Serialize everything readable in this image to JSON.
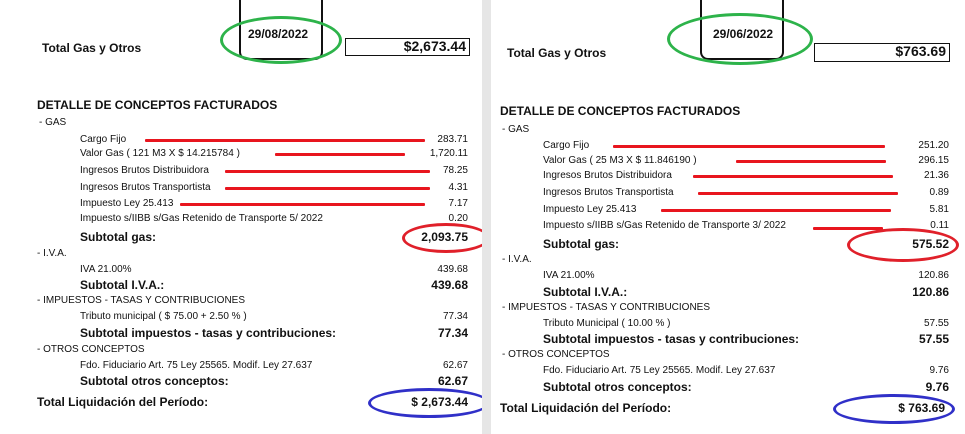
{
  "colors": {
    "green": "#2db34a",
    "red": "#e0202a",
    "blue": "#3030c8",
    "redline": "#e8151e"
  },
  "left": {
    "date": "29/08/2022",
    "total_label": "Total Gas y Otros",
    "total_value": "$2,673.44",
    "detail_title": "DETALLE DE CONCEPTOS  FACTURADOS",
    "gas_header": "- GAS",
    "gas_items": [
      {
        "label": "Cargo Fijo",
        "value": "283.71"
      },
      {
        "label": "Valor Gas  ( 121 M3  X  $  14.215784 )",
        "value": "1,720.11"
      },
      {
        "label": "Ingresos Brutos Distribuidora",
        "value": "78.25"
      },
      {
        "label": "Ingresos Brutos Transportista",
        "value": "4.31"
      },
      {
        "label": "Impuesto Ley 25.413",
        "value": "7.17"
      },
      {
        "label": "Impuesto s/IIBB s/Gas Retenido de Transporte 5/ 2022",
        "value": "0.20"
      }
    ],
    "subtotal_gas_label": "Subtotal gas:",
    "subtotal_gas_value": "2,093.75",
    "iva_header": "- I.V.A.",
    "iva_item": {
      "label": "IVA 21.00%",
      "value": "439.68"
    },
    "subtotal_iva_label": "Subtotal I.V.A.:",
    "subtotal_iva_value": "439.68",
    "imp_header": "- IMPUESTOS - TASAS Y CONTRIBUCIONES",
    "imp_item": {
      "label": "Tributo municipal  (   $   75.00  +    2.50 % )",
      "value": "77.34"
    },
    "subtotal_imp_label": "Subtotal impuestos - tasas y contribuciones:",
    "subtotal_imp_value": "77.34",
    "otros_header": "- OTROS CONCEPTOS",
    "otros_item": {
      "label": "Fdo. Fiduciario Art. 75 Ley 25565. Modif. Ley 27.637",
      "value": "62.67"
    },
    "subtotal_otros_label": "Subtotal otros conceptos:",
    "subtotal_otros_value": "62.67",
    "total_liq_label": "Total Liquidación del Período:",
    "total_liq_value": "$ 2,673.44"
  },
  "right": {
    "date": "29/06/2022",
    "total_label": "Total Gas y Otros",
    "total_value": "$763.69",
    "detail_title": "DETALLE DE CONCEPTOS  FACTURADOS",
    "gas_header": "- GAS",
    "gas_items": [
      {
        "label": "Cargo Fijo",
        "value": "251.20"
      },
      {
        "label": "Valor Gas   ( 25 M3  X  $   11.846190 )",
        "value": "296.15"
      },
      {
        "label": "Ingresos Brutos Distribuidora",
        "value": "21.36"
      },
      {
        "label": "Ingresos Brutos Transportista",
        "value": "0.89"
      },
      {
        "label": "Impuesto Ley 25.413",
        "value": "5.81"
      },
      {
        "label": "Impuesto s/IIBB s/Gas Retenido de Transporte 3/ 2022",
        "value": "0.11"
      }
    ],
    "subtotal_gas_label": "Subtotal gas:",
    "subtotal_gas_value": "575.52",
    "iva_header": "- I.V.A.",
    "iva_item": {
      "label": "IVA 21.00%",
      "value": "120.86"
    },
    "subtotal_iva_label": "Subtotal I.V.A.:",
    "subtotal_iva_value": "120.86",
    "imp_header": "- IMPUESTOS - TASAS Y CONTRIBUCIONES",
    "imp_item": {
      "label": "Tributo Municipal   (    10.00 % )",
      "value": "57.55"
    },
    "subtotal_imp_label": "Subtotal impuestos - tasas y contribuciones:",
    "subtotal_imp_value": "57.55",
    "otros_header": "- OTROS CONCEPTOS",
    "otros_item": {
      "label": "Fdo. Fiduciario Art. 75 Ley 25565. Modif. Ley 27.637",
      "value": "9.76"
    },
    "subtotal_otros_label": "Subtotal otros conceptos:",
    "subtotal_otros_value": "9.76",
    "total_liq_label": "Total Liquidación del Período:",
    "total_liq_value": "$ 763.69"
  }
}
